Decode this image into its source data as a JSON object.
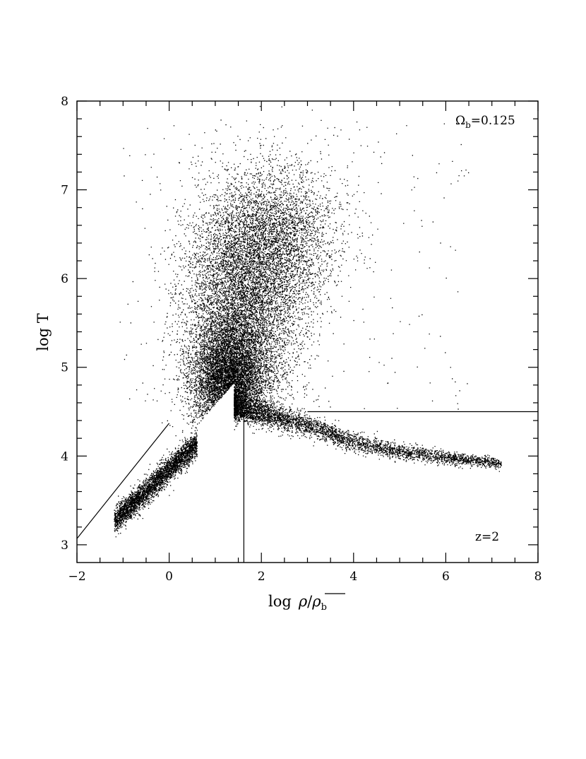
{
  "chart_data": {
    "type": "scatter",
    "xlabel": "log  ρ/ρ̄",
    "xlabel_parts": {
      "prefix": "log",
      "rho": "ρ",
      "slash": "/",
      "rho_bar": "ρ",
      "sub": "b"
    },
    "ylabel": "log T",
    "xlim": [
      -2,
      8
    ],
    "ylim": [
      2.8,
      8
    ],
    "x_ticks": [
      -2,
      0,
      2,
      4,
      6,
      8
    ],
    "x_tick_labels": [
      "−2",
      "0",
      "2",
      "4",
      "6",
      "8"
    ],
    "y_ticks": [
      3,
      4,
      5,
      6,
      7,
      8
    ],
    "y_tick_labels": [
      "3",
      "4",
      "5",
      "6",
      "7",
      "8"
    ],
    "grid": false,
    "annotations": {
      "omega_symbol": "Ω",
      "omega_sub": "b",
      "omega_value": "=0.125",
      "redshift": "z=2"
    },
    "reference_lines": [
      {
        "name": "diagonal",
        "points": [
          [
            -2,
            3.07
          ],
          [
            0,
            4.37
          ]
        ]
      },
      {
        "name": "horizontal-threshold",
        "points": [
          [
            3.0,
            4.5
          ],
          [
            8.0,
            4.5
          ]
        ]
      },
      {
        "name": "vertical-threshold",
        "points": [
          [
            1.62,
            2.8
          ],
          [
            1.62,
            4.5
          ]
        ]
      }
    ],
    "point_cloud": {
      "description_free": true,
      "regions": [
        {
          "name": "low-density-branch",
          "x_range": [
            -1.2,
            0.6
          ],
          "y_at_x": [
            [
              -1.2,
              3.27
            ],
            [
              0.6,
              4.15
            ]
          ],
          "spread": 0.07,
          "count": 3600
        },
        {
          "name": "high-density-branch",
          "x_range": [
            1.4,
            7.2
          ],
          "y_at_x": [
            [
              1.4,
              4.55
            ],
            [
              3.0,
              4.35
            ],
            [
              4.0,
              4.16
            ],
            [
              5.0,
              4.05
            ],
            [
              6.0,
              3.99
            ],
            [
              7.2,
              3.92
            ]
          ],
          "spread": 0.04,
          "count": 4200
        },
        {
          "name": "core",
          "center": [
            1.3,
            4.85
          ],
          "sd": [
            0.4,
            0.32
          ],
          "count": 7000
        },
        {
          "name": "warm-hot-plume",
          "center": [
            1.6,
            5.7
          ],
          "sd": [
            0.65,
            0.6
          ],
          "count": 7000
        },
        {
          "name": "hot-halo",
          "center": [
            2.3,
            6.5
          ],
          "sd": [
            0.7,
            0.4
          ],
          "count": 3200
        },
        {
          "name": "sparse-outliers",
          "x_range": [
            -1.0,
            6.5
          ],
          "y_range": [
            4.5,
            7.8
          ],
          "count": 260
        }
      ]
    }
  }
}
